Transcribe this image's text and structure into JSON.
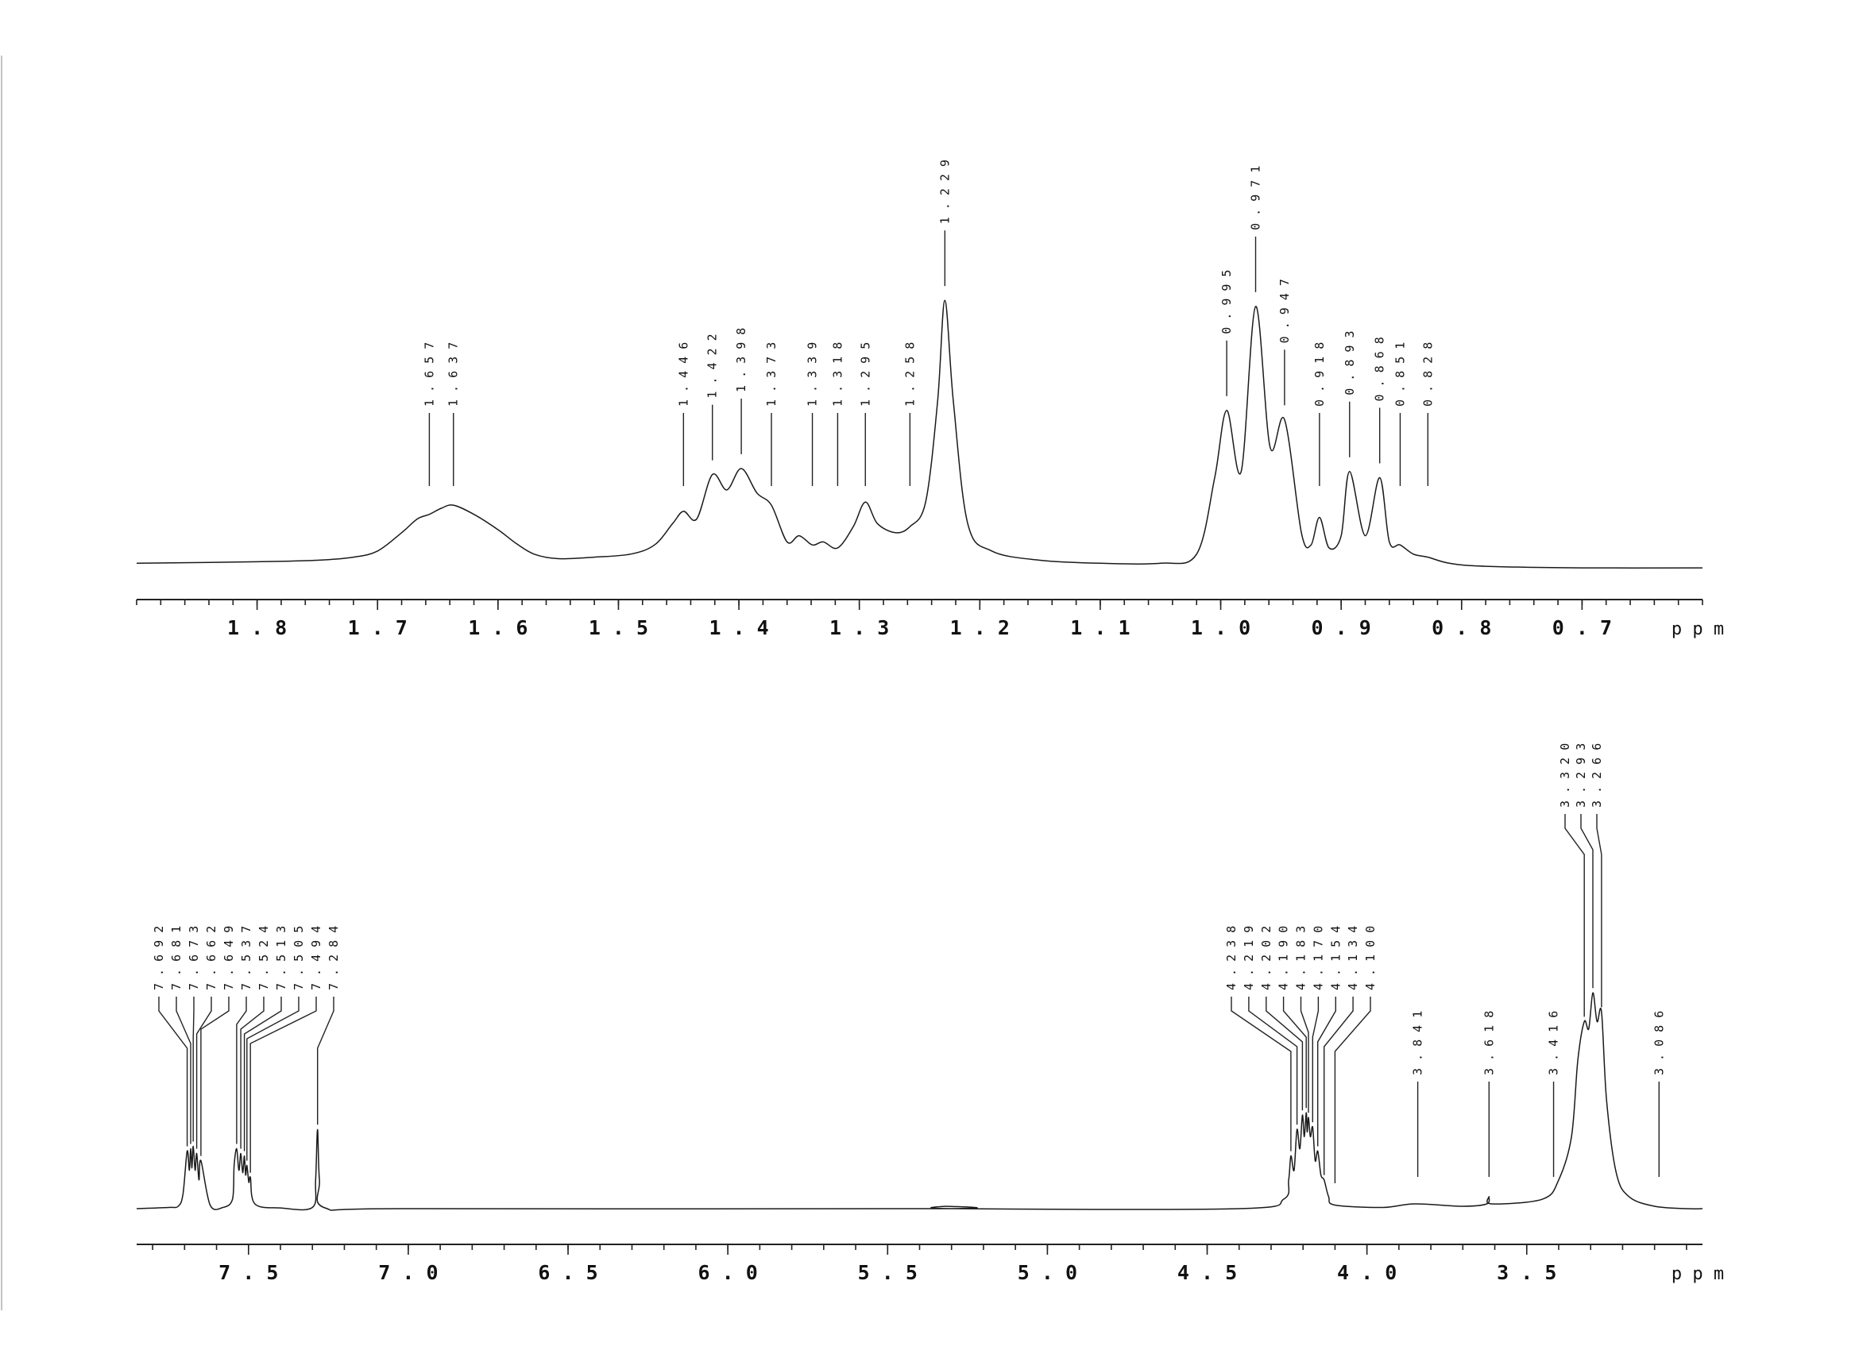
{
  "chart_data": [
    {
      "type": "line",
      "xlabel": "ppm",
      "xlim": [
        1.9,
        0.6
      ],
      "x_reversed": true,
      "major_ticks": [
        "1.8",
        "1.7",
        "1.6",
        "1.5",
        "1.4",
        "1.3",
        "1.2",
        "1.1",
        "1.0",
        "0.9",
        "0.8",
        "0.7"
      ],
      "peak_labels": [
        "1.657",
        "1.637",
        "1.446",
        "1.422",
        "1.398",
        "1.373",
        "1.339",
        "1.318",
        "1.295",
        "1.258",
        "1.229",
        "0.995",
        "0.971",
        "0.947",
        "0.918",
        "0.893",
        "0.868",
        "0.851",
        "0.828"
      ],
      "series": [
        {
          "x": [
            1.9,
            1.8,
            1.75,
            1.72,
            1.7,
            1.68,
            1.667,
            1.657,
            1.647,
            1.637,
            1.62,
            1.6,
            1.585,
            1.57,
            1.55,
            1.52,
            1.49,
            1.47,
            1.455,
            1.446,
            1.435,
            1.422,
            1.41,
            1.398,
            1.385,
            1.373,
            1.36,
            1.35,
            1.339,
            1.33,
            1.318,
            1.305,
            1.295,
            1.285,
            1.27,
            1.258,
            1.245,
            1.235,
            1.229,
            1.222,
            1.21,
            1.19,
            1.15,
            1.1,
            1.05,
            1.02,
            1.005,
            0.995,
            0.983,
            0.971,
            0.959,
            0.947,
            0.933,
            0.925,
            0.918,
            0.91,
            0.9,
            0.893,
            0.88,
            0.868,
            0.86,
            0.851,
            0.84,
            0.828,
            0.81,
            0.78,
            0.7,
            0.6
          ],
          "y": [
            0.02,
            0.025,
            0.03,
            0.04,
            0.06,
            0.12,
            0.165,
            0.18,
            0.2,
            0.21,
            0.18,
            0.13,
            0.085,
            0.05,
            0.035,
            0.04,
            0.05,
            0.08,
            0.15,
            0.19,
            0.165,
            0.31,
            0.26,
            0.33,
            0.25,
            0.21,
            0.09,
            0.11,
            0.08,
            0.09,
            0.07,
            0.14,
            0.22,
            0.15,
            0.12,
            0.14,
            0.22,
            0.55,
            0.88,
            0.55,
            0.15,
            0.06,
            0.03,
            0.02,
            0.02,
            0.05,
            0.3,
            0.52,
            0.32,
            0.86,
            0.4,
            0.49,
            0.12,
            0.08,
            0.17,
            0.07,
            0.11,
            0.32,
            0.11,
            0.3,
            0.09,
            0.08,
            0.05,
            0.04,
            0.02,
            0.01,
            0.005,
            0.005
          ]
        }
      ]
    },
    {
      "type": "line",
      "xlabel": "ppm",
      "xlim": [
        7.85,
        2.95
      ],
      "x_reversed": true,
      "major_ticks": [
        "7.5",
        "7.0",
        "6.5",
        "6.0",
        "5.5",
        "5.0",
        "4.5",
        "4.0",
        "3.5"
      ],
      "peak_labels": [
        "7.692",
        "7.681",
        "7.673",
        "7.662",
        "7.649",
        "7.537",
        "7.524",
        "7.513",
        "7.505",
        "7.494",
        "7.284",
        "4.238",
        "4.219",
        "4.202",
        "4.190",
        "4.183",
        "4.170",
        "4.154",
        "4.134",
        "4.100",
        "3.841",
        "3.618",
        "3.416",
        "3.320",
        "3.293",
        "3.266",
        "3.086"
      ],
      "series": [
        {
          "x": [
            7.85,
            7.75,
            7.72,
            7.705,
            7.692,
            7.685,
            7.681,
            7.677,
            7.673,
            7.667,
            7.662,
            7.655,
            7.649,
            7.62,
            7.58,
            7.55,
            7.545,
            7.537,
            7.53,
            7.524,
            7.518,
            7.513,
            7.509,
            7.505,
            7.499,
            7.494,
            7.48,
            7.4,
            7.3,
            7.29,
            7.284,
            7.278,
            7.26,
            7.0,
            5.35,
            5.32,
            5.29,
            4.4,
            4.26,
            4.245,
            4.238,
            4.228,
            4.219,
            4.21,
            4.202,
            4.196,
            4.19,
            4.187,
            4.183,
            4.177,
            4.17,
            4.162,
            4.154,
            4.144,
            4.134,
            4.12,
            4.1,
            3.95,
            3.85,
            3.7,
            3.625,
            3.618,
            3.61,
            3.45,
            3.4,
            3.36,
            3.34,
            3.32,
            3.306,
            3.293,
            3.28,
            3.266,
            3.25,
            3.22,
            3.18,
            3.1,
            3.0,
            2.95
          ],
          "y": [
            0.0,
            0.005,
            0.01,
            0.06,
            0.24,
            0.16,
            0.25,
            0.17,
            0.26,
            0.16,
            0.23,
            0.12,
            0.2,
            0.015,
            0.005,
            0.04,
            0.18,
            0.25,
            0.16,
            0.23,
            0.15,
            0.22,
            0.14,
            0.18,
            0.11,
            0.13,
            0.02,
            0.003,
            0.005,
            0.12,
            0.33,
            0.12,
            0.003,
            0.0,
            0.0,
            0.01,
            0.0,
            0.0,
            0.04,
            0.12,
            0.22,
            0.16,
            0.33,
            0.25,
            0.39,
            0.3,
            0.4,
            0.32,
            0.38,
            0.3,
            0.34,
            0.2,
            0.24,
            0.14,
            0.12,
            0.05,
            0.015,
            0.005,
            0.02,
            0.01,
            0.02,
            0.05,
            0.02,
            0.04,
            0.12,
            0.3,
            0.62,
            0.78,
            0.75,
            0.9,
            0.78,
            0.82,
            0.45,
            0.15,
            0.05,
            0.01,
            0.0,
            0.0
          ]
        }
      ]
    }
  ]
}
